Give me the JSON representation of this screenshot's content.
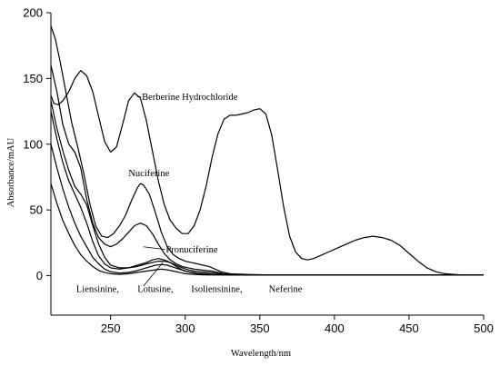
{
  "chart_data": {
    "type": "line",
    "title": "",
    "xlabel": "Wavelength/nm",
    "ylabel": "Absorbance/mAU",
    "xlim": [
      210,
      500
    ],
    "ylim": [
      -30,
      200
    ],
    "xticks": [
      250,
      300,
      350,
      400,
      450,
      500
    ],
    "yticks": [
      0,
      50,
      100,
      150,
      200
    ],
    "grid": false,
    "legend": "none",
    "annotations": [
      {
        "text": "Berberine Hydrochloride",
        "x": 271,
        "y": 136,
        "pointer": [
          268,
          136
        ]
      },
      {
        "text": "Nuciferine",
        "x": 262,
        "y": 78,
        "pointer": null
      },
      {
        "text": "Pronuciferine",
        "x": 287,
        "y": 20,
        "pointer": [
          272,
          22
        ]
      },
      {
        "text": "Liensinine,",
        "x": 227,
        "y": -10,
        "pointer": null
      },
      {
        "text": "Lotusine,",
        "x": 268,
        "y": -10,
        "pointer": null
      },
      {
        "text": "Isoliensinine,",
        "x": 304,
        "y": -10,
        "pointer": null
      },
      {
        "text": "Neferine",
        "x": 356,
        "y": -10,
        "pointer": null
      }
    ],
    "pointers": [
      {
        "from": [
          272,
          -8
        ],
        "to": [
          285,
          10
        ]
      }
    ],
    "series": [
      {
        "x": [
          210,
          212,
          215,
          218,
          222,
          226,
          230,
          234,
          238,
          242,
          246,
          250,
          254,
          258,
          262,
          266,
          270,
          274,
          278,
          282,
          286,
          290,
          294,
          298,
          302,
          306,
          310,
          314,
          318,
          322,
          326,
          330,
          334,
          338,
          342,
          346,
          350,
          354,
          358,
          362,
          366,
          370,
          374,
          378,
          382,
          386,
          390,
          396,
          402,
          408,
          414,
          420,
          426,
          432,
          438,
          444,
          450,
          456,
          462,
          468,
          474,
          480,
          486,
          492,
          500
        ],
        "values": [
          137,
          131,
          130,
          133,
          140,
          150,
          156,
          152,
          140,
          121,
          102,
          94,
          98,
          115,
          133,
          139,
          135,
          118,
          95,
          72,
          54,
          42,
          36,
          32,
          32,
          38,
          50,
          68,
          90,
          108,
          119,
          122,
          122,
          123,
          124,
          126,
          127,
          123,
          107,
          80,
          52,
          30,
          18,
          13,
          12,
          13,
          15,
          18,
          21,
          24,
          27,
          29,
          30,
          29,
          27,
          23,
          17,
          11,
          6,
          3,
          1.5,
          1,
          0.5,
          0.5,
          0.5
        ]
      },
      {
        "x": [
          210,
          213,
          216,
          220,
          224,
          228,
          232,
          236,
          240,
          244,
          248,
          252,
          256,
          260,
          264,
          268,
          270,
          272,
          276,
          280,
          284,
          288,
          292,
          296,
          300,
          304,
          308,
          312,
          316,
          320,
          324,
          330,
          340,
          360,
          400,
          450,
          500
        ],
        "values": [
          190,
          180,
          164,
          140,
          116,
          98,
          78,
          55,
          38,
          30,
          29,
          32,
          38,
          46,
          57,
          67,
          70,
          69,
          62,
          48,
          33,
          22,
          16,
          13,
          11,
          10,
          9,
          8,
          7,
          5,
          3,
          1.5,
          1,
          0.5,
          0.5,
          0.5,
          0.5
        ]
      },
      {
        "x": [
          210,
          214,
          218,
          222,
          226,
          230,
          234,
          238,
          242,
          246,
          250,
          254,
          258,
          262,
          266,
          270,
          274,
          278,
          282,
          286,
          290,
          294,
          298,
          302,
          306,
          310,
          314,
          318,
          322,
          326,
          330,
          340,
          360,
          400,
          450,
          500
        ],
        "values": [
          160,
          140,
          115,
          100,
          94,
          82,
          58,
          40,
          29,
          24,
          22,
          24,
          28,
          33,
          38,
          40,
          38,
          32,
          24,
          17,
          12,
          9,
          7,
          6,
          5,
          4.5,
          4,
          3.5,
          2.5,
          1.5,
          1,
          0.5,
          0.5,
          0.5,
          0.5,
          0.5
        ]
      },
      {
        "x": [
          210,
          214,
          218,
          222,
          226,
          230,
          234,
          238,
          242,
          246,
          250,
          256,
          262,
          268,
          274,
          278,
          282,
          286,
          290,
          294,
          298,
          302,
          306,
          310,
          316,
          320,
          326,
          334,
          360,
          400,
          450,
          500
        ],
        "values": [
          133,
          112,
          95,
          80,
          68,
          62,
          54,
          38,
          24,
          14,
          8,
          6,
          6,
          7,
          9,
          10,
          11,
          11,
          10,
          8,
          6,
          4.5,
          3.5,
          3,
          2.5,
          2,
          1,
          0.5,
          0.5,
          0.5,
          0.5,
          0.5
        ]
      },
      {
        "x": [
          210,
          214,
          218,
          222,
          226,
          230,
          234,
          238,
          242,
          246,
          250,
          256,
          262,
          268,
          274,
          278,
          282,
          286,
          290,
          294,
          298,
          302,
          308,
          314,
          320,
          334,
          360,
          400,
          450,
          500
        ],
        "values": [
          125,
          104,
          86,
          72,
          62,
          52,
          40,
          26,
          15,
          9,
          6,
          5,
          6,
          8,
          10,
          12,
          13,
          12,
          10,
          7,
          4.5,
          3,
          2,
          1.5,
          1,
          0.5,
          0.5,
          0.5,
          0.5,
          0.5
        ]
      },
      {
        "x": [
          210,
          214,
          218,
          222,
          226,
          230,
          234,
          238,
          242,
          246,
          250,
          256,
          262,
          268,
          274,
          280,
          284,
          288,
          292,
          296,
          300,
          306,
          312,
          320,
          340,
          400,
          450,
          500
        ],
        "values": [
          100,
          82,
          66,
          52,
          40,
          30,
          22,
          14,
          9,
          5,
          3,
          2,
          2.5,
          4,
          6,
          8,
          8.5,
          8,
          6.5,
          5,
          3.5,
          2,
          1.2,
          0.8,
          0.5,
          0.5,
          0.5,
          0.5
        ]
      },
      {
        "x": [
          210,
          214,
          218,
          222,
          226,
          230,
          234,
          238,
          242,
          246,
          250,
          256,
          262,
          268,
          274,
          280,
          284,
          288,
          292,
          296,
          300,
          306,
          312,
          320,
          340,
          400,
          450,
          500
        ],
        "values": [
          70,
          55,
          42,
          32,
          23,
          16,
          11,
          7,
          4,
          2.5,
          1.5,
          1,
          1.5,
          2.5,
          3.5,
          4.5,
          5,
          4.5,
          3.5,
          2.5,
          1.5,
          1,
          0.6,
          0.5,
          0.5,
          0.5,
          0.5,
          0.5
        ]
      }
    ]
  }
}
